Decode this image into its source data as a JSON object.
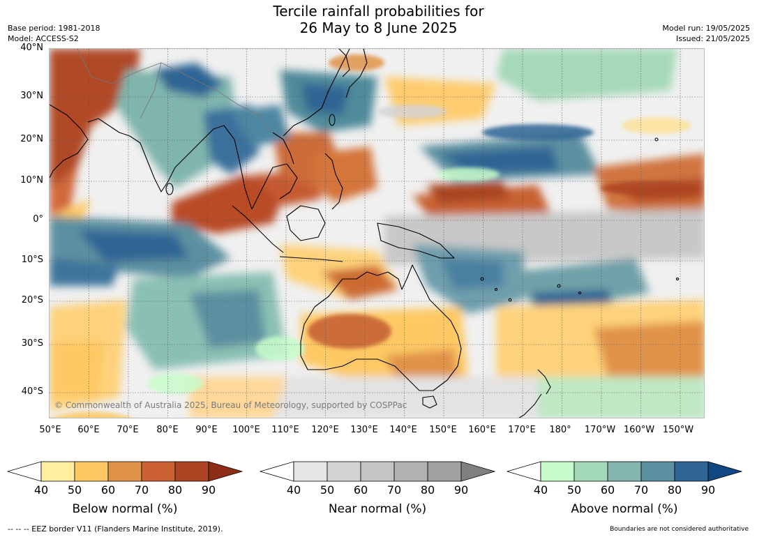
{
  "title_line1": "Tercile rainfall probabilities for",
  "title_line2": "26 May to 8 June 2025",
  "meta": {
    "base_period": "Base period: 1981-2018",
    "model": "Model: ACCESS-S2",
    "model_run": "Model run: 19/05/2025",
    "issued": "Issued: 21/05/2025"
  },
  "map": {
    "lat_labels": [
      "40°N",
      "30°N",
      "20°N",
      "10°N",
      "0°",
      "10°S",
      "20°S",
      "30°S",
      "40°S"
    ],
    "lon_labels": [
      "50°E",
      "60°E",
      "70°E",
      "80°E",
      "90°E",
      "100°E",
      "110°E",
      "120°E",
      "130°E",
      "140°E",
      "150°E",
      "160°E",
      "170°E",
      "180°",
      "170°W",
      "160°W",
      "150°W"
    ],
    "copyright": "© Commonwealth of Australia 2025, Bureau of Meteorology, supported by COSPPac",
    "base_color": "#f3f3f3"
  },
  "colorbars": [
    {
      "title": "Below normal (%)",
      "ticks": [
        "40",
        "50",
        "60",
        "70",
        "80",
        "90"
      ],
      "colors": [
        "#ffffff",
        "#ffeda0",
        "#fec965",
        "#e0934a",
        "#cc6133",
        "#ad4423",
        "#8e2d15"
      ]
    },
    {
      "title": "Near normal (%)",
      "ticks": [
        "40",
        "50",
        "60",
        "70",
        "80",
        "90"
      ],
      "colors": [
        "#ffffff",
        "#e6e6e6",
        "#d4d4d4",
        "#c4c4c4",
        "#b2b2b2",
        "#a0a0a0",
        "#808080"
      ]
    },
    {
      "title": "Above normal (%)",
      "ticks": [
        "40",
        "50",
        "60",
        "70",
        "80",
        "90"
      ],
      "colors": [
        "#ffffff",
        "#c7fcca",
        "#a2d8b8",
        "#82b6ae",
        "#5b90a0",
        "#2e6594",
        "#0f4882"
      ]
    }
  ],
  "footer_left": "--  --  -- EEZ border V11 (Flanders Marine Institute, 2019).",
  "footer_right": "Boundaries are not considered authoritative"
}
